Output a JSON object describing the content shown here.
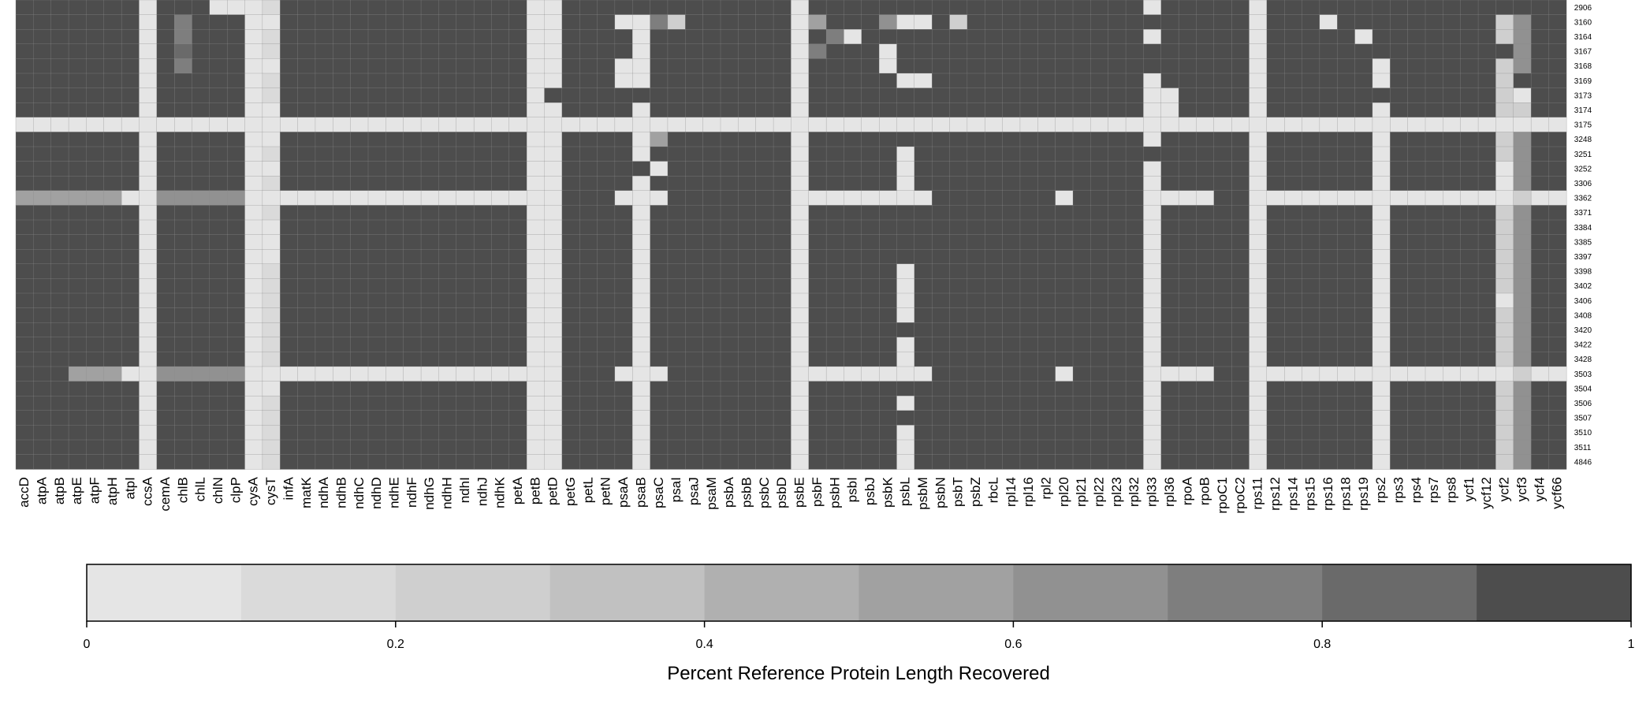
{
  "chart_data": {
    "type": "heatmap",
    "columns": [
      "accD",
      "atpA",
      "atpB",
      "atpE",
      "atpF",
      "atpH",
      "atpI",
      "ccsA",
      "cemA",
      "chlB",
      "chlL",
      "chlN",
      "clpP",
      "cysA",
      "cysT",
      "infA",
      "matK",
      "ndhA",
      "ndhB",
      "ndhC",
      "ndhD",
      "ndhE",
      "ndhF",
      "ndhG",
      "ndhH",
      "ndhI",
      "ndhJ",
      "ndhK",
      "petA",
      "petB",
      "petD",
      "petG",
      "petL",
      "petN",
      "psaA",
      "psaB",
      "psaC",
      "psaI",
      "psaJ",
      "psaM",
      "psbA",
      "psbB",
      "psbC",
      "psbD",
      "psbE",
      "psbF",
      "psbH",
      "psbI",
      "psbJ",
      "psbK",
      "psbL",
      "psbM",
      "psbN",
      "psbT",
      "psbZ",
      "rbcL",
      "rpl14",
      "rpl16",
      "rpl2",
      "rpl20",
      "rpl21",
      "rpl22",
      "rpl23",
      "rpl32",
      "rpl33",
      "rpl36",
      "rpoA",
      "rpoB",
      "rpoC1",
      "rpoC2",
      "rps11",
      "rps12",
      "rps14",
      "rps15",
      "rps16",
      "rps18",
      "rps19",
      "rps2",
      "rps3",
      "rps4",
      "rps7",
      "rps8",
      "ycf1",
      "ycf12",
      "ycf2",
      "ycf3",
      "ycf4",
      "ycf66"
    ],
    "rows": [
      "2906",
      "3160",
      "3164",
      "3167",
      "3168",
      "3169",
      "3173",
      "3174",
      "3175",
      "3248",
      "3251",
      "3252",
      "3306",
      "3362",
      "3371",
      "3384",
      "3385",
      "3397",
      "3398",
      "3402",
      "3406",
      "3408",
      "3420",
      "3422",
      "3428",
      "3503",
      "3504",
      "3506",
      "3507",
      "3510",
      "3511",
      "4846"
    ],
    "matrix_encoding": "Each row string gives one character per column (same order as columns); digit d means the cell value lies in the colour bin [d/10, (d+1)/10), with 9 meaning 0.9 to 1.0.",
    "matrix": [
      "9999999099900019999999999999900999999999999909999999999999999999099999099999999999999999",
      "9999999097999009999999999999900999007299999905999600929999999999999999099909999999992699",
      "9999999097999019999999999999900999909999999909709999999999999999099999099999099999992699",
      "9999999098999019999999999999900999909999999907999099999999999999999999099999999999999699",
      "9999999097999009999999999999900999009999999909999099999999999999999999099999909999992699",
      "9999999099999019999999999999900999009999999909999900999999999999099999099999909999992999",
      "9999999099999019999999999999909999999999999909999999999999999999009999099999999999992099",
      "9999999099999009999999999999900999909999999909999999999999999999009999099999909999992299",
      "0000000000000000000000000000000000000000000000000000000000000000000000000000000000000000",
      "9999999099999009999999999999900999905999999909999999999999999999099999099999909999992699",
      "9999999099999019999999999999900999909999999909999909999999999999999999099999909999992699",
      "9999999099999009999999999999900999990999999909999909999999999999099999099999909999990699",
      "9999999099999019999999999999900999909999999909999909999999999999099999099999909999990699",
      "5555550066666000000000000000000999000999999900000000999999909999000099000000000000000200",
      "9999999099999019999999999999900999909999999909999999999999999999099999099999909999992699",
      "9999999099999009999999999999900999909999999909999999999999999999099999099999909999992699",
      "9999999099999009999999999999900999909999999909999999999999999999099999099999909999992699",
      "9999999099999009999999999999900999909999999909999999999999999999099999099999909999992699",
      "9999999099999019999999999999900999909999999909999909999999999999099999099999909999992699",
      "9999999099999019999999999999900999909999999909999909999999999999099999099999909999992699",
      "9999999099999019999999999999900999909999999909999909999999999999099999099999909999990699",
      "9999999099999019999999999999900999909999999909999909999999999999099999099999909999992699",
      "9999999099999019999999999999900999909999999909999999999999999999099999099999909999992699",
      "9999999099999019999999999999900999909999999909999909999999999999099999099999909999992699",
      "9999999099999019999999999999900999909999999909999909999999999999099999099999909999992699",
      "9995550066666000000000000000000999000999999900000000999999909999000099000000000000000200",
      "9999999099999009999999999999900999909999999909999999999999999999099999099999909999992699",
      "9999999099999019999999999999900999909999999909999909999999999999099999099999909999992699",
      "9999999099999019999999999999900999909999999909999999999999999999099999099999909999992699",
      "9999999099999019999999999999900999909999999909999909999999999999099999099999909999992699",
      "9999999099999019999999999999900999909999999909999909999999999999099999099999909999992699",
      "9999999099999019999999999999900999909999999909999909999999999999099999099999909999992699"
    ],
    "legend": {
      "title": "Percent Reference Protein Length Recovered",
      "min": 0,
      "max": 1,
      "bins": 10,
      "ticks": [
        "0",
        "0.2",
        "0.4",
        "0.6",
        "0.8",
        "1"
      ],
      "colors": [
        "#e5e5e5",
        "#dadada",
        "#cfcfcf",
        "#c1c1c1",
        "#b0b0b0",
        "#a1a1a1",
        "#919191",
        "#7e7e7e",
        "#6a6a6a",
        "#4d4d4d"
      ]
    }
  }
}
